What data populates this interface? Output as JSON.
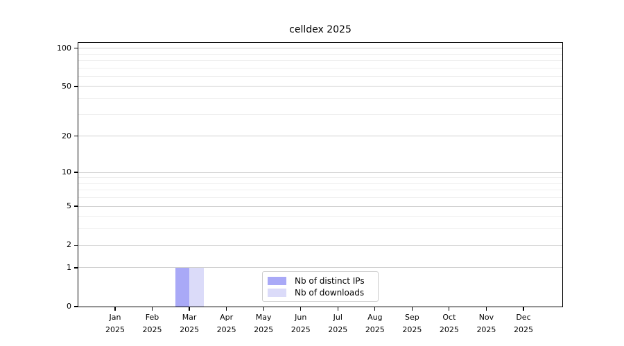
{
  "chart_data": {
    "type": "bar",
    "title": "celldex 2025",
    "categories": [
      "Jan",
      "Feb",
      "Mar",
      "Apr",
      "May",
      "Jun",
      "Jul",
      "Aug",
      "Sep",
      "Oct",
      "Nov",
      "Dec"
    ],
    "year_label": "2025",
    "series": [
      {
        "name": "Nb of distinct IPs",
        "color": "#a9a9f7",
        "values": [
          0,
          0,
          1,
          0,
          0,
          0,
          0,
          0,
          0,
          0,
          0,
          0
        ]
      },
      {
        "name": "Nb of downloads",
        "color": "#dbdbf9",
        "values": [
          0,
          0,
          1,
          0,
          0,
          0,
          0,
          0,
          0,
          0,
          0,
          0
        ]
      }
    ],
    "y_axis": {
      "scale": "log1p",
      "major_ticks": [
        0,
        1,
        2,
        5,
        10,
        20,
        50,
        100
      ],
      "minor_gridlines": [
        3,
        4,
        6,
        7,
        8,
        9,
        30,
        40,
        60,
        70,
        80,
        90
      ],
      "ylim": [
        0,
        110
      ]
    },
    "legend": {
      "position": "bottom-center-inside"
    },
    "grid": "horizontal"
  },
  "colors": {
    "background": "#ffffff",
    "axis": "#000000",
    "major_grid": "#cfcfcf",
    "minor_grid": "#efefef",
    "legend_border": "#cccccc"
  }
}
